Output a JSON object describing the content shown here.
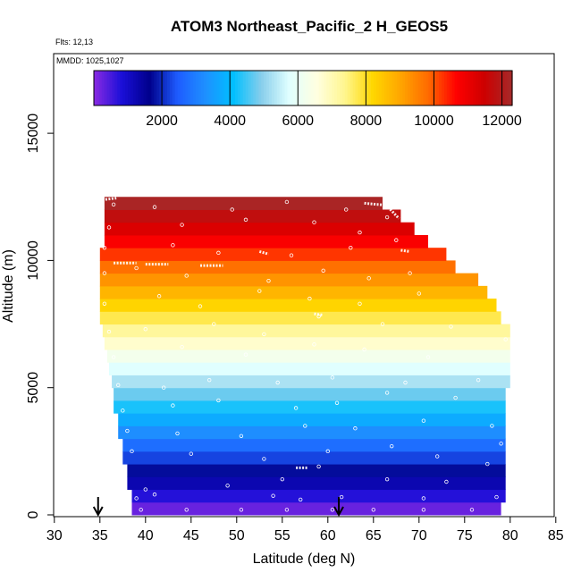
{
  "chart_data": {
    "type": "heatmap",
    "title": "ATOM3 Northeast_Pacific_2 H_GEOS5",
    "flights_label": "Flts: 12,13",
    "dates_label": "MMDD: 1025,1027",
    "xlabel": "Latitude (deg N)",
    "ylabel": "Altitude (m)",
    "xlim": [
      30,
      85
    ],
    "ylim": [
      0,
      17500
    ],
    "x_ticks": [
      30,
      35,
      40,
      45,
      50,
      55,
      60,
      65,
      70,
      75,
      80,
      85
    ],
    "y_ticks": [
      0,
      5000,
      10000,
      15000
    ],
    "colorbar": {
      "min": 0,
      "max": 12300,
      "ticks": [
        2000,
        4000,
        6000,
        8000,
        10000,
        12000
      ],
      "colors": [
        "#8a2be2",
        "#1a0fd8",
        "#00008b",
        "#1e5cff",
        "#1e90ff",
        "#00bfff",
        "#87ceeb",
        "#e0ffff",
        "#ffffe0",
        "#fff68f",
        "#ffd700",
        "#ffa500",
        "#ff6a00",
        "#ff0000",
        "#cd0000",
        "#a52a2a"
      ]
    },
    "band_step_m": 500,
    "rows": [
      {
        "alt": 0,
        "lat_min": 38.5,
        "lat_max": 79.0,
        "value": 250
      },
      {
        "alt": 500,
        "lat_min": 38.5,
        "lat_max": 79.5,
        "value": 750
      },
      {
        "alt": 1000,
        "lat_min": 38.0,
        "lat_max": 79.5,
        "value": 1250
      },
      {
        "alt": 1500,
        "lat_min": 38.0,
        "lat_max": 79.5,
        "value": 1750
      },
      {
        "alt": 2000,
        "lat_min": 37.5,
        "lat_max": 79.5,
        "value": 2250
      },
      {
        "alt": 2500,
        "lat_min": 37.5,
        "lat_max": 79.5,
        "value": 2750
      },
      {
        "alt": 3000,
        "lat_min": 37.0,
        "lat_max": 79.5,
        "value": 3250
      },
      {
        "alt": 3500,
        "lat_min": 37.0,
        "lat_max": 79.5,
        "value": 3750
      },
      {
        "alt": 4000,
        "lat_min": 36.5,
        "lat_max": 79.5,
        "value": 4250
      },
      {
        "alt": 4500,
        "lat_min": 36.5,
        "lat_max": 79.5,
        "value": 4750
      },
      {
        "alt": 5000,
        "lat_min": 36.3,
        "lat_max": 80.0,
        "value": 5250
      },
      {
        "alt": 5500,
        "lat_min": 36.0,
        "lat_max": 80.0,
        "value": 5750
      },
      {
        "alt": 6000,
        "lat_min": 35.8,
        "lat_max": 80.0,
        "value": 6250
      },
      {
        "alt": 6500,
        "lat_min": 35.5,
        "lat_max": 80.0,
        "value": 6750
      },
      {
        "alt": 7000,
        "lat_min": 35.3,
        "lat_max": 80.0,
        "value": 7250
      },
      {
        "alt": 7500,
        "lat_min": 35.0,
        "lat_max": 79.0,
        "value": 7750
      },
      {
        "alt": 8000,
        "lat_min": 35.0,
        "lat_max": 78.5,
        "value": 8250
      },
      {
        "alt": 8500,
        "lat_min": 35.0,
        "lat_max": 77.5,
        "value": 8750
      },
      {
        "alt": 9000,
        "lat_min": 35.0,
        "lat_max": 76.5,
        "value": 9250
      },
      {
        "alt": 9500,
        "lat_min": 35.0,
        "lat_max": 74.0,
        "value": 9750
      },
      {
        "alt": 10000,
        "lat_min": 35.0,
        "lat_max": 73.0,
        "value": 10250
      },
      {
        "alt": 10500,
        "lat_min": 35.5,
        "lat_max": 71.0,
        "value": 10750
      },
      {
        "alt": 11000,
        "lat_min": 35.5,
        "lat_max": 69.5,
        "value": 11250
      },
      {
        "alt": 11500,
        "lat_min": 35.5,
        "lat_max": 68.0,
        "value": 11750
      },
      {
        "alt": 12000,
        "lat_min": 35.5,
        "lat_max": 66.0,
        "value": 12200
      }
    ],
    "obs_points": [
      [
        39.5,
        200
      ],
      [
        44.5,
        200
      ],
      [
        50.5,
        200
      ],
      [
        55.5,
        200
      ],
      [
        60.5,
        200
      ],
      [
        65.0,
        200
      ],
      [
        70.5,
        200
      ],
      [
        75.8,
        200
      ],
      [
        39.0,
        650
      ],
      [
        41.0,
        800
      ],
      [
        54.0,
        750
      ],
      [
        57.0,
        600
      ],
      [
        61.5,
        700
      ],
      [
        70.5,
        650
      ],
      [
        78.5,
        700
      ],
      [
        40.0,
        1000
      ],
      [
        49.0,
        1150
      ],
      [
        55.0,
        1400
      ],
      [
        59.0,
        1900
      ],
      [
        66.5,
        1400
      ],
      [
        73.0,
        1300
      ],
      [
        77.5,
        2000
      ],
      [
        38.5,
        2500
      ],
      [
        45.0,
        2400
      ],
      [
        53.0,
        2200
      ],
      [
        60.0,
        2500
      ],
      [
        67.0,
        2700
      ],
      [
        72.0,
        2300
      ],
      [
        79.0,
        2800
      ],
      [
        38.0,
        3300
      ],
      [
        43.5,
        3200
      ],
      [
        50.5,
        3100
      ],
      [
        57.5,
        3500
      ],
      [
        63.0,
        3400
      ],
      [
        70.5,
        3700
      ],
      [
        78.0,
        3500
      ],
      [
        37.5,
        4100
      ],
      [
        43.0,
        4300
      ],
      [
        48.0,
        4500
      ],
      [
        56.5,
        4200
      ],
      [
        61.0,
        4400
      ],
      [
        66.5,
        4800
      ],
      [
        74.0,
        4600
      ],
      [
        37.0,
        5100
      ],
      [
        42.0,
        5000
      ],
      [
        47.0,
        5300
      ],
      [
        54.5,
        5200
      ],
      [
        60.5,
        5400
      ],
      [
        68.5,
        5200
      ],
      [
        76.5,
        5300
      ],
      [
        36.5,
        6200
      ],
      [
        44.0,
        6600
      ],
      [
        51.0,
        6300
      ],
      [
        58.5,
        6700
      ],
      [
        64.0,
        6500
      ],
      [
        71.0,
        6200
      ],
      [
        79.5,
        6900
      ],
      [
        36.0,
        7200
      ],
      [
        40.0,
        7300
      ],
      [
        47.5,
        7500
      ],
      [
        53.0,
        7100
      ],
      [
        59.0,
        7800
      ],
      [
        66.0,
        7500
      ],
      [
        73.5,
        7400
      ],
      [
        35.5,
        8300
      ],
      [
        41.5,
        8600
      ],
      [
        46.0,
        8200
      ],
      [
        52.5,
        8800
      ],
      [
        58.0,
        8500
      ],
      [
        63.5,
        8300
      ],
      [
        70.0,
        8700
      ],
      [
        35.5,
        9500
      ],
      [
        39.0,
        9700
      ],
      [
        44.5,
        9400
      ],
      [
        53.5,
        9200
      ],
      [
        59.5,
        9600
      ],
      [
        64.5,
        9300
      ],
      [
        69.0,
        9500
      ],
      [
        35.5,
        10500
      ],
      [
        43.0,
        10600
      ],
      [
        48.0,
        10300
      ],
      [
        56.0,
        10200
      ],
      [
        62.5,
        10500
      ],
      [
        67.5,
        10800
      ],
      [
        36.0,
        11300
      ],
      [
        44.0,
        11400
      ],
      [
        51.0,
        11600
      ],
      [
        58.5,
        11500
      ],
      [
        63.5,
        11100
      ],
      [
        66.5,
        11700
      ],
      [
        36.5,
        12200
      ],
      [
        41.0,
        12100
      ],
      [
        49.5,
        12000
      ],
      [
        55.5,
        12300
      ],
      [
        62.0,
        12000
      ]
    ],
    "obs_tracks": [
      [
        35.6,
        12400,
        36.8,
        12450
      ],
      [
        64.0,
        12250,
        67.0,
        12150
      ],
      [
        66.6,
        12100,
        67.8,
        11650
      ],
      [
        36.5,
        9900,
        39.0,
        9900
      ],
      [
        40.0,
        9850,
        42.5,
        9850
      ],
      [
        46.0,
        9800,
        48.5,
        9800
      ],
      [
        52.5,
        10350,
        53.5,
        10250
      ],
      [
        58.5,
        7900,
        59.5,
        7850
      ],
      [
        56.5,
        1850,
        57.8,
        1850
      ],
      [
        68.0,
        10400,
        69.0,
        10350
      ]
    ],
    "arrows_at_latitude": [
      34.8,
      61.2
    ]
  }
}
